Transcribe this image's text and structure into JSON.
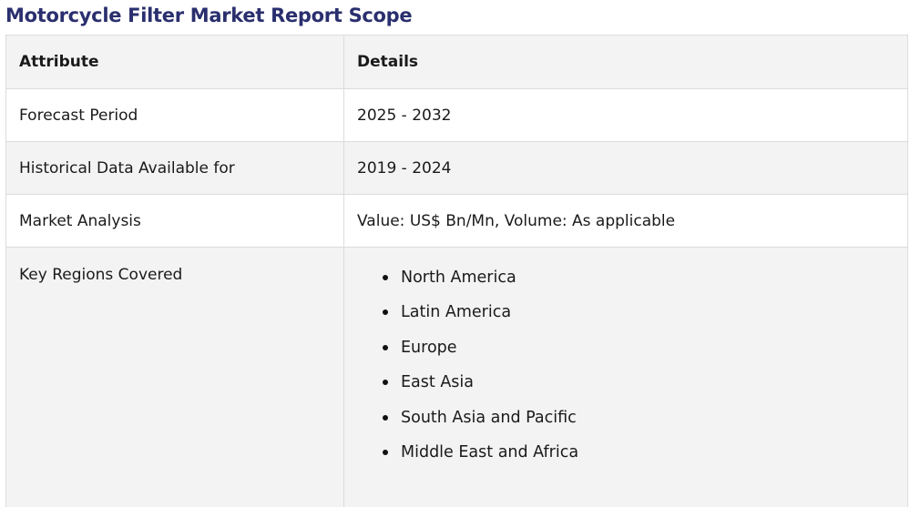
{
  "title": "Motorcycle Filter Market Report Scope",
  "table": {
    "headers": [
      "Attribute",
      "Details"
    ],
    "rows": [
      {
        "attribute": "Forecast Period",
        "detail": "2025 - 2032"
      },
      {
        "attribute": "Historical Data Available for",
        "detail": "2019 - 2024"
      },
      {
        "attribute": "Market Analysis",
        "detail": "Value: US$ Bn/Mn, Volume: As applicable"
      }
    ],
    "regions": {
      "attribute": "Key Regions Covered",
      "items": [
        "North America",
        "Latin America",
        "Europe",
        "East Asia",
        "South Asia and Pacific",
        "Middle East and Africa"
      ]
    }
  },
  "colors": {
    "title": "#2a2f6e",
    "header_bg": "#f3f3f3",
    "row_alt_bg": "#f3f3f3",
    "border": "#dcdcdc"
  }
}
